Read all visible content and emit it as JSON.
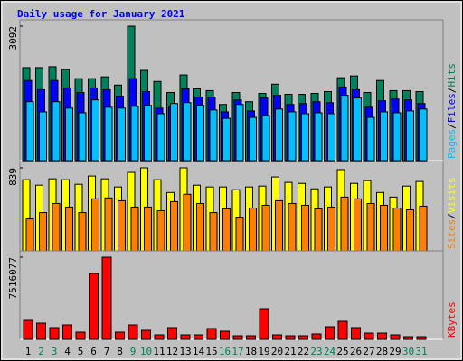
{
  "title": "Daily usage for January 2021",
  "chart_data": [
    {
      "type": "bar",
      "ylim": [
        0,
        3092
      ],
      "yticks": [
        3092
      ],
      "separator": "/",
      "series": [
        {
          "name": "Hits",
          "color": "#00805c",
          "values": [
            2139,
            2139,
            2160,
            2096,
            1885,
            1885,
            1927,
            1737,
            3092,
            2075,
            1821,
            1567,
            1970,
            1652,
            1610,
            1292,
            1567,
            1355,
            1546,
            1758,
            1525,
            1525,
            1546,
            1588,
            1906,
            1948,
            1567,
            1843,
            1610,
            1610,
            1588
          ]
        },
        {
          "name": "Files",
          "color": "#0000ff",
          "values": [
            1843,
            1631,
            1843,
            1673,
            1567,
            1673,
            1631,
            1482,
            1885,
            1588,
            1207,
            1228,
            1652,
            1461,
            1461,
            1122,
            1397,
            1143,
            1440,
            1503,
            1292,
            1313,
            1355,
            1334,
            1694,
            1631,
            1228,
            1376,
            1418,
            1397,
            1313
          ]
        },
        {
          "name": "Pages",
          "color": "#00c0ff",
          "values": [
            1355,
            1122,
            1355,
            1207,
            1101,
            1397,
            1228,
            1207,
            1249,
            1270,
            1080,
            1313,
            1334,
            1270,
            1165,
            974,
            1292,
            995,
            1037,
            1186,
            1122,
            1080,
            1101,
            1080,
            1503,
            1440,
            995,
            1122,
            1101,
            1143,
            1186
          ]
        }
      ]
    },
    {
      "type": "bar",
      "ylim": [
        0,
        839
      ],
      "yticks": [
        839
      ],
      "separator": "/",
      "series": [
        {
          "name": "Visits",
          "color": "#ffff00",
          "values": [
            719,
            664,
            728,
            719,
            673,
            756,
            728,
            646,
            793,
            839,
            719,
            590,
            839,
            664,
            646,
            646,
            618,
            646,
            655,
            747,
            692,
            682,
            627,
            646,
            821,
            682,
            710,
            590,
            544,
            655,
            701
          ]
        },
        {
          "name": "Sites",
          "color": "#ff8000",
          "values": [
            323,
            387,
            479,
            443,
            387,
            526,
            535,
            507,
            443,
            443,
            406,
            498,
            572,
            479,
            387,
            424,
            341,
            433,
            461,
            507,
            479,
            461,
            424,
            443,
            544,
            526,
            479,
            461,
            433,
            415,
            452
          ]
        }
      ]
    },
    {
      "type": "bar",
      "ylim": [
        0,
        7516077
      ],
      "yticks": [
        7516077
      ],
      "categories": [
        "1",
        "2",
        "3",
        "4",
        "5",
        "6",
        "7",
        "8",
        "9",
        "10",
        "11",
        "12",
        "13",
        "14",
        "15",
        "16",
        "17",
        "18",
        "19",
        "20",
        "21",
        "22",
        "23",
        "24",
        "25",
        "26",
        "27",
        "28",
        "29",
        "30",
        "31"
      ],
      "category_colors": [
        "#000000",
        "#00805c",
        "#00805c",
        "#000000",
        "#000000",
        "#000000",
        "#000000",
        "#000000",
        "#00805c",
        "#00805c",
        "#000000",
        "#000000",
        "#000000",
        "#000000",
        "#000000",
        "#00805c",
        "#00805c",
        "#000000",
        "#000000",
        "#000000",
        "#000000",
        "#000000",
        "#00805c",
        "#00805c",
        "#000000",
        "#000000",
        "#000000",
        "#000000",
        "#000000",
        "#00805c",
        "#00805c"
      ],
      "series": [
        {
          "name": "KBytes",
          "color": "#ff0000",
          "values": [
            1734000,
            1487000,
            1074000,
            1321000,
            661000,
            6029000,
            7516077,
            661000,
            1321000,
            826000,
            413000,
            1074000,
            413000,
            413000,
            991000,
            743000,
            330000,
            330000,
            2808000,
            413000,
            330000,
            330000,
            496000,
            1156000,
            1652000,
            1074000,
            578000,
            578000,
            413000,
            248000,
            248000
          ]
        }
      ]
    }
  ]
}
